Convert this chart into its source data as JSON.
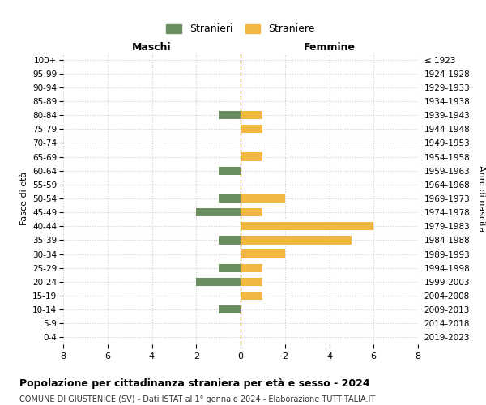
{
  "age_groups": [
    "100+",
    "95-99",
    "90-94",
    "85-89",
    "80-84",
    "75-79",
    "70-74",
    "65-69",
    "60-64",
    "55-59",
    "50-54",
    "45-49",
    "40-44",
    "35-39",
    "30-34",
    "25-29",
    "20-24",
    "15-19",
    "10-14",
    "5-9",
    "0-4"
  ],
  "birth_years": [
    "≤ 1923",
    "1924-1928",
    "1929-1933",
    "1934-1938",
    "1939-1943",
    "1944-1948",
    "1949-1953",
    "1954-1958",
    "1959-1963",
    "1964-1968",
    "1969-1973",
    "1974-1978",
    "1979-1983",
    "1984-1988",
    "1989-1993",
    "1994-1998",
    "1999-2003",
    "2004-2008",
    "2009-2013",
    "2014-2018",
    "2019-2023"
  ],
  "maschi": [
    0,
    0,
    0,
    0,
    1,
    0,
    0,
    0,
    1,
    0,
    1,
    2,
    0,
    1,
    0,
    1,
    2,
    0,
    1,
    0,
    0
  ],
  "femmine": [
    0,
    0,
    0,
    0,
    1,
    1,
    0,
    1,
    0,
    0,
    2,
    1,
    6,
    5,
    2,
    1,
    1,
    1,
    0,
    0,
    0
  ],
  "color_maschi": "#6b8e5e",
  "color_femmine": "#f0b840",
  "color_center_line": "#b8b800",
  "xlim": 8,
  "title": "Popolazione per cittadinanza straniera per età e sesso - 2024",
  "subtitle": "COMUNE DI GIUSTENICE (SV) - Dati ISTAT al 1° gennaio 2024 - Elaborazione TUTTITALIA.IT",
  "ylabel_left": "Fasce di età",
  "ylabel_right": "Anni di nascita",
  "label_maschi": "Stranieri",
  "label_femmine": "Straniere",
  "header_maschi": "Maschi",
  "header_femmine": "Femmine",
  "background_color": "#ffffff",
  "grid_color": "#cccccc"
}
